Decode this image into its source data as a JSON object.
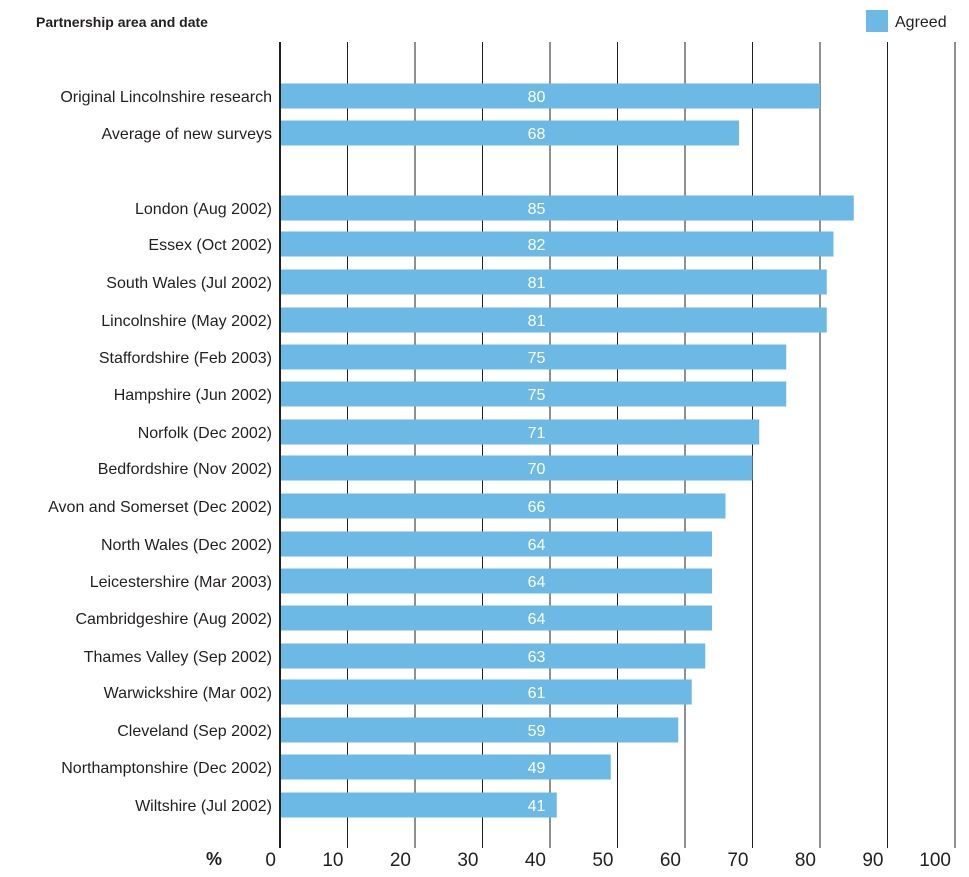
{
  "chart_data": {
    "type": "bar",
    "orientation": "horizontal",
    "title": "Partnership area and date",
    "xlabel": "%",
    "xlim": [
      0,
      100
    ],
    "xticks": [
      0,
      10,
      20,
      30,
      40,
      50,
      60,
      70,
      80,
      90,
      100
    ],
    "grid": true,
    "legend": {
      "placement": "top-right",
      "entries": [
        "Agreed"
      ]
    },
    "colors": {
      "bar": "#6cb9e6",
      "text": "#231f20",
      "grid": "#231f20"
    },
    "series": [
      {
        "name": "Agreed",
        "categories": [
          "Original Lincolnshire research",
          "Average of new surveys",
          "London (Aug 2002)",
          "Essex (Oct 2002)",
          "South Wales (Jul 2002)",
          "Lincolnshire (May 2002)",
          "Staffordshire (Feb 2003)",
          "Hampshire (Jun 2002)",
          "Norfolk (Dec 2002)",
          "Bedfordshire (Nov 2002)",
          "Avon and Somerset (Dec 2002)",
          "North Wales (Dec 2002)",
          "Leicestershire (Mar 2003)",
          "Cambridgeshire (Aug 2002)",
          "Thames Valley (Sep 2002)",
          "Warwickshire (Mar 002)",
          "Cleveland (Sep 2002)",
          "Northamptonshire (Dec 2002)",
          "Wiltshire (Jul 2002)"
        ],
        "values": [
          80,
          68,
          85,
          82,
          81,
          81,
          75,
          75,
          71,
          70,
          66,
          64,
          64,
          64,
          63,
          61,
          59,
          49,
          41
        ]
      }
    ]
  }
}
